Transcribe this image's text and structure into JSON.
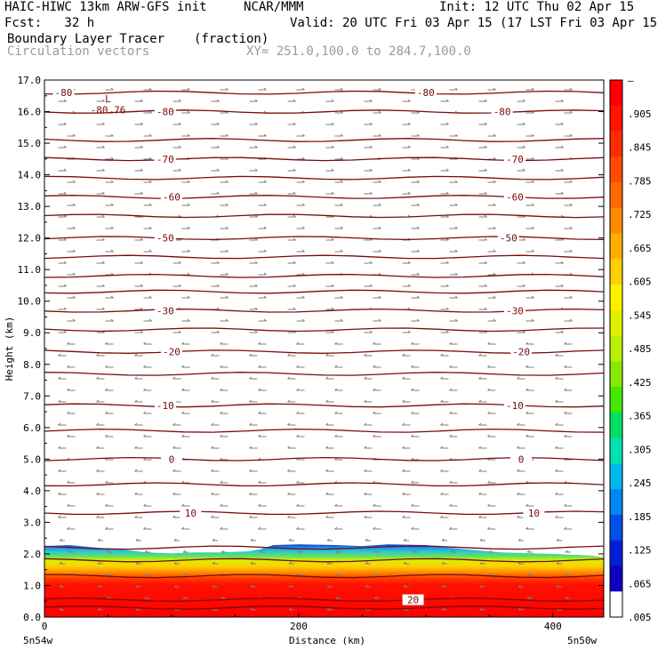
{
  "header": {
    "title": "HAIC-HIWC 13km ARW-GFS init",
    "org": "NCAR/MMM",
    "init": "Init: 12 UTC Thu 02 Apr 15",
    "fcst": "Fcst:   32 h",
    "valid": "Valid: 20 UTC Fri 03 Apr 15 (17 LST Fri 03 Apr 15)",
    "field": "Boundary Layer Tracer",
    "field_units": "(fraction)",
    "vectors": "Circulation vectors",
    "xy": "XY= 251.0,100.0 to 284.7,100.0"
  },
  "colors": {
    "contour": "#7a0a0a",
    "frame": "#000000",
    "vector": "#7f7f7f"
  },
  "chart_data": {
    "type": "heatmap",
    "xlabel": "Distance (km)",
    "ylabel": "Height (km)",
    "xlim": [
      0,
      440
    ],
    "ylim": [
      0,
      17
    ],
    "x_ticks": [
      0,
      200,
      400
    ],
    "y_ticks": [
      "0.0",
      "1.0",
      "2.0",
      "3.0",
      "4.0",
      "5.0",
      "6.0",
      "7.0",
      "8.0",
      "9.0",
      "10.0",
      "11.0",
      "12.0",
      "13.0",
      "14.0",
      "15.0",
      "16.0",
      "17.0"
    ],
    "x_end_labels": [
      "5n54w",
      "5n50w"
    ],
    "colorbar_labels": [
      "–",
      ".905",
      ".845",
      ".785",
      ".725",
      ".665",
      ".605",
      ".545",
      ".485",
      ".425",
      ".365",
      ".305",
      ".245",
      ".185",
      ".125",
      ".065",
      ".005"
    ],
    "colorbar_colors": [
      "#ff0000",
      "#ff1400",
      "#ff2c00",
      "#ff4a00",
      "#ff6a00",
      "#ff8c00",
      "#ffae00",
      "#ffd000",
      "#fff000",
      "#e0f000",
      "#b8f000",
      "#88e800",
      "#44e800",
      "#00e060",
      "#00e0b0",
      "#00b8f0",
      "#0088f0",
      "#0050e8",
      "#0020d8",
      "#1000c0",
      "#ffffff"
    ],
    "tracer_top_km": [
      [
        0,
        2.25
      ],
      [
        20,
        2.28
      ],
      [
        40,
        2.2
      ],
      [
        60,
        2.15
      ],
      [
        80,
        2.05
      ],
      [
        100,
        2.02
      ],
      [
        120,
        2.05
      ],
      [
        140,
        2.05
      ],
      [
        160,
        2.08
      ],
      [
        170,
        2.15
      ],
      [
        180,
        2.28
      ],
      [
        200,
        2.3
      ],
      [
        230,
        2.28
      ],
      [
        250,
        2.25
      ],
      [
        270,
        2.3
      ],
      [
        300,
        2.28
      ],
      [
        330,
        2.15
      ],
      [
        360,
        2.05
      ],
      [
        400,
        2.0
      ],
      [
        430,
        1.95
      ],
      [
        440,
        1.9
      ]
    ],
    "temperature_contours": [
      {
        "label": "-80",
        "y": 16.6,
        "labels_x": [
          15,
          300
        ]
      },
      {
        "label": "-80",
        "y": 16.0,
        "labels_x": [
          95,
          360
        ]
      },
      {
        "label": "-70",
        "y": 14.5,
        "labels_x": [
          95,
          370
        ]
      },
      {
        "label": "-60",
        "y": 13.3,
        "labels_x": [
          100,
          370
        ]
      },
      {
        "label": "-50",
        "y": 12.0,
        "labels_x": [
          95,
          365
        ]
      },
      {
        "label": "-30",
        "y": 9.7,
        "labels_x": [
          95,
          370
        ]
      },
      {
        "label": "-20",
        "y": 8.4,
        "labels_x": [
          100,
          375
        ]
      },
      {
        "label": "-10",
        "y": 6.7,
        "labels_x": [
          95,
          370
        ]
      },
      {
        "label": "0",
        "y": 5.0,
        "labels_x": [
          100,
          375
        ]
      },
      {
        "label": "10",
        "y": 3.3,
        "labels_x": [
          115,
          385
        ]
      },
      {
        "label": "20",
        "y": 0.55,
        "labels_x": [
          290
        ]
      }
    ],
    "extra_contour_heights_km": [
      0.3,
      1.3,
      1.8,
      2.2,
      4.2,
      5.9,
      7.7,
      9.1,
      10.3,
      10.8,
      11.4,
      12.7,
      13.9,
      15.1
    ],
    "annotations": [
      {
        "text": "L",
        "x": 50,
        "y": 16.3
      },
      {
        "text": "-80.76",
        "x": 50,
        "y": 15.95
      }
    ]
  }
}
